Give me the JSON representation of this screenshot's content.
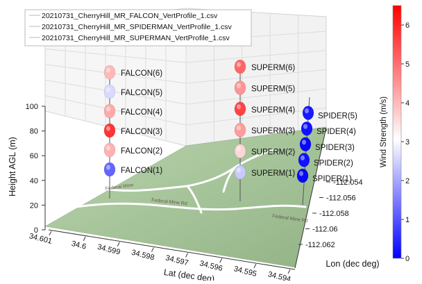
{
  "chart_data": {
    "type": "scatter",
    "subtype": "3d-vertical-profile",
    "xlabel": "Lat (dec deg)",
    "ylabel": "Lon (dec deg)",
    "zlabel": "Height AGL (m)",
    "x_ticks": [
      "34.601",
      "34.6",
      "34.599",
      "34.598",
      "34.597",
      "34.596",
      "34.595",
      "34.594"
    ],
    "y_ticks": [
      "-112.054",
      "-112.056",
      "-112.058",
      "-112.06",
      "-112.062"
    ],
    "z_ticks": [
      "0",
      "20",
      "40",
      "60",
      "80",
      "100"
    ],
    "zlim": [
      0,
      100
    ],
    "legend": {
      "position": "top-left",
      "entries": [
        "20210731_CherryHill_MR_FALCON_VertProfile_1.csv",
        "20210731_CherryHill_MR_SPIDERMAN_VertProfile_1.csv",
        "20210731_CherryHill_MR_SUPERMAN_VertProfile_1.csv"
      ]
    },
    "colorbar": {
      "label": "Wind Strength (m/s)",
      "range": [
        0,
        6.5
      ],
      "ticks": [
        "0",
        "1",
        "2",
        "3",
        "4",
        "5",
        "6"
      ],
      "colormap": [
        "#0000ff",
        "#ffffff",
        "#ff0000"
      ]
    },
    "map_labels": [
      "Federal Mine Rd",
      "Federal Mine Rd",
      "Federal Mine"
    ],
    "series": [
      {
        "name": "FALCON",
        "points": [
          {
            "label": "FALCON(1)",
            "height": 20,
            "wind": 1.2
          },
          {
            "label": "FALCON(2)",
            "height": 35,
            "wind": 4.1
          },
          {
            "label": "FALCON(3)",
            "height": 50,
            "wind": 5.8
          },
          {
            "label": "FALCON(4)",
            "height": 65,
            "wind": 4.2
          },
          {
            "label": "FALCON(5)",
            "height": 80,
            "wind": 2.6
          },
          {
            "label": "FALCON(6)",
            "height": 95,
            "wind": 4.0
          }
        ]
      },
      {
        "name": "SUPERMAN",
        "points": [
          {
            "label": "SUPERM(1)",
            "height": 20,
            "wind": 2.4
          },
          {
            "label": "SUPERM(2)",
            "height": 35,
            "wind": 3.6
          },
          {
            "label": "SUPERM(3)",
            "height": 50,
            "wind": 4.4
          },
          {
            "label": "SUPERM(4)",
            "height": 65,
            "wind": 5.6
          },
          {
            "label": "SUPERM(5)",
            "height": 80,
            "wind": 4.5
          },
          {
            "label": "SUPERM(6)",
            "height": 95,
            "wind": 5.1
          }
        ]
      },
      {
        "name": "SPIDERMAN",
        "points": [
          {
            "label": "SPIDER(1)",
            "height": 20,
            "wind": 0.1
          },
          {
            "label": "SPIDER(2)",
            "height": 35,
            "wind": 0.2
          },
          {
            "label": "SPIDER(3)",
            "height": 50,
            "wind": 0.1
          },
          {
            "label": "SPIDER(4)",
            "height": 65,
            "wind": 0.2
          },
          {
            "label": "SPIDER(5)",
            "height": 80,
            "wind": 0.3
          }
        ]
      }
    ]
  }
}
